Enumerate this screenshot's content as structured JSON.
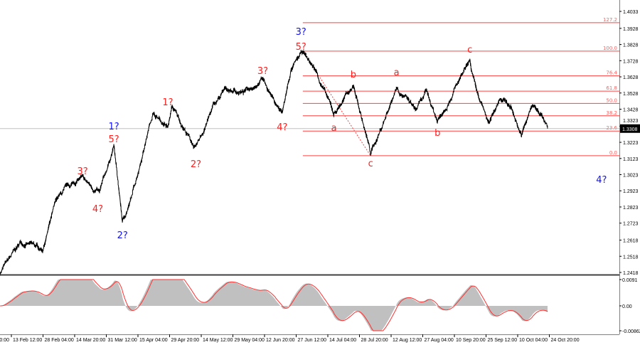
{
  "chart_data": {
    "type": "line",
    "price_axis": {
      "ticks": [
        "1.4033",
        "1.3928",
        "1.3828",
        "1.3728",
        "1.3628",
        "1.3528",
        "1.3428",
        "1.3323",
        "1.3223",
        "1.3123",
        "1.3023",
        "1.2923",
        "1.2823",
        "1.2723",
        "1.2618",
        "1.2518",
        "1.2418"
      ],
      "ylim": [
        1.2418,
        1.4033
      ],
      "current_price": "1.3308"
    },
    "time_axis": {
      "ticks": [
        {
          "label": "0:00",
          "date": "2024-01-29T00:00"
        },
        {
          "label": "13 Feb 12:00",
          "date": "2024-02-13T12:00"
        },
        {
          "label": "28 Feb 04:00",
          "date": "2024-02-28T04:00"
        },
        {
          "label": "14 Mar 20:00",
          "date": "2024-03-14T20:00"
        },
        {
          "label": "31 Mar 12:00",
          "date": "2024-03-31T12:00"
        },
        {
          "label": "15 Apr 04:00",
          "date": "2024-04-15T04:00"
        },
        {
          "label": "29 Apr 20:00",
          "date": "2024-04-29T20:00"
        },
        {
          "label": "14 May 12:00",
          "date": "2024-05-14T12:00"
        },
        {
          "label": "29 May 04:00",
          "date": "2024-05-29T04:00"
        },
        {
          "label": "12 Jun 20:00",
          "date": "2024-06-12T20:00"
        },
        {
          "label": "27 Jun 12:00",
          "date": "2024-06-27T12:00"
        },
        {
          "label": "14 Jul 04:00",
          "date": "2024-07-14T04:00"
        },
        {
          "label": "28 Jul 20:00",
          "date": "2024-07-28T20:00"
        },
        {
          "label": "12 Aug 12:00",
          "date": "2024-08-12T12:00"
        },
        {
          "label": "27 Aug 04:00",
          "date": "2024-08-27T04:00"
        },
        {
          "label": "10 Sep 20:00",
          "date": "2024-09-10T20:00"
        },
        {
          "label": "25 Sep 12:00",
          "date": "2024-09-25T12:00"
        },
        {
          "label": "10 Oct 04:00",
          "date": "2024-10-10T04:00"
        },
        {
          "label": "24 Oct 20:00",
          "date": "2024-10-24T20:00"
        }
      ]
    },
    "price_series": [
      [
        "2024-02-08",
        1.2418
      ],
      [
        "2024-02-18",
        1.2606
      ],
      [
        "2024-02-28",
        1.2562
      ],
      [
        "2024-03-06",
        1.287
      ],
      [
        "2024-03-11",
        1.2936
      ],
      [
        "2024-03-18",
        1.3003
      ],
      [
        "2024-03-28",
        1.2906
      ],
      [
        "2024-04-04",
        1.3201
      ],
      [
        "2024-04-08",
        1.273
      ],
      [
        "2024-04-12",
        1.287
      ],
      [
        "2024-04-22",
        1.3408
      ],
      [
        "2024-04-29",
        1.3311
      ],
      [
        "2024-05-01",
        1.3443
      ],
      [
        "2024-05-12",
        1.3179
      ],
      [
        "2024-05-20",
        1.3443
      ],
      [
        "2024-05-26",
        1.3553
      ],
      [
        "2024-06-03",
        1.3531
      ],
      [
        "2024-06-12",
        1.3619
      ],
      [
        "2024-06-18",
        1.3465
      ],
      [
        "2024-06-21",
        1.3399
      ],
      [
        "2024-06-25",
        1.3663
      ],
      [
        "2024-07-01",
        1.3782
      ],
      [
        "2024-07-08",
        1.3663
      ],
      [
        "2024-07-17",
        1.3399
      ],
      [
        "2024-07-26",
        1.3575
      ],
      [
        "2024-08-03",
        1.3157
      ],
      [
        "2024-08-08",
        1.3311
      ],
      [
        "2024-08-15",
        1.3567
      ],
      [
        "2024-08-24",
        1.3421
      ],
      [
        "2024-08-29",
        1.3531
      ],
      [
        "2024-09-03",
        1.3355
      ],
      [
        "2024-09-11",
        1.3553
      ],
      [
        "2024-09-18",
        1.3716
      ],
      [
        "2024-09-21",
        1.3531
      ],
      [
        "2024-09-27",
        1.3333
      ],
      [
        "2024-10-02",
        1.3509
      ],
      [
        "2024-10-07",
        1.3443
      ],
      [
        "2024-10-12",
        1.3267
      ],
      [
        "2024-10-17",
        1.3452
      ],
      [
        "2024-10-21",
        1.3399
      ],
      [
        "2024-10-24",
        1.3308
      ]
    ],
    "fibonacci": {
      "high": 1.3787,
      "low": 1.314,
      "start_date": "2024-07-01",
      "levels": [
        "0.0",
        "23.6",
        "38.2",
        "50.0",
        "61.8",
        "76.4",
        "100.0",
        "127.2"
      ],
      "color": "#ff4040"
    },
    "trend_line": {
      "from": [
        "2024-07-01",
        1.3787
      ],
      "to": [
        "2024-08-03",
        1.314
      ],
      "style": "dashed",
      "color": "#ff4040"
    },
    "wave_labels": [
      {
        "text": "3?",
        "color": "#ff2020",
        "date": "2024-03-19",
        "price": 1.3047
      },
      {
        "text": "4?",
        "color": "#ff2020",
        "date": "2024-03-27",
        "price": 1.2814
      },
      {
        "text": "1?",
        "color": "#1010ff",
        "date": "2024-04-04",
        "price": 1.3311
      },
      {
        "text": "5?",
        "color": "#ff2020",
        "date": "2024-04-04",
        "price": 1.3254
      },
      {
        "text": "2?",
        "color": "#1010ff",
        "date": "2024-04-08",
        "price": 1.2651
      },
      {
        "text": "1?",
        "color": "#ff2020",
        "date": "2024-04-29",
        "price": 1.3474
      },
      {
        "text": "2?",
        "color": "#ff2020",
        "date": "2024-05-12",
        "price": 1.3091
      },
      {
        "text": "3?",
        "color": "#ff2020",
        "date": "2024-06-12",
        "price": 1.3668
      },
      {
        "text": "4?",
        "color": "#ff2020",
        "date": "2024-06-21",
        "price": 1.332
      },
      {
        "text": "3?",
        "color": "#1010ff",
        "date": "2024-06-30",
        "price": 1.3897
      },
      {
        "text": "5?",
        "color": "#ff2020",
        "date": "2024-06-30",
        "price": 1.3826
      },
      {
        "text": "a",
        "color": "#ff2020",
        "date": "2024-07-17",
        "price": 1.3316
      },
      {
        "text": "b",
        "color": "#ff2020",
        "date": "2024-07-26",
        "price": 1.3646
      },
      {
        "text": "c",
        "color": "#ff2020",
        "date": "2024-08-03",
        "price": 1.3095
      },
      {
        "text": "a",
        "color": "#ff2020",
        "date": "2024-08-15",
        "price": 1.3659
      },
      {
        "text": "b",
        "color": "#ff2020",
        "date": "2024-09-03",
        "price": 1.3285
      },
      {
        "text": "c",
        "color": "#ff2020",
        "date": "2024-09-18",
        "price": 1.38
      },
      {
        "text": "4?",
        "color": "#1010ff",
        "date": "2024-11-18",
        "price": 1.2994
      }
    ],
    "indicator": {
      "ticks": [
        "0.0091",
        "0.00",
        "-0.00862"
      ],
      "ylim": [
        -0.00862,
        0.0091
      ],
      "histogram_color": "#c0c0c0",
      "signal_color": "#ff3030"
    },
    "grid": false
  }
}
